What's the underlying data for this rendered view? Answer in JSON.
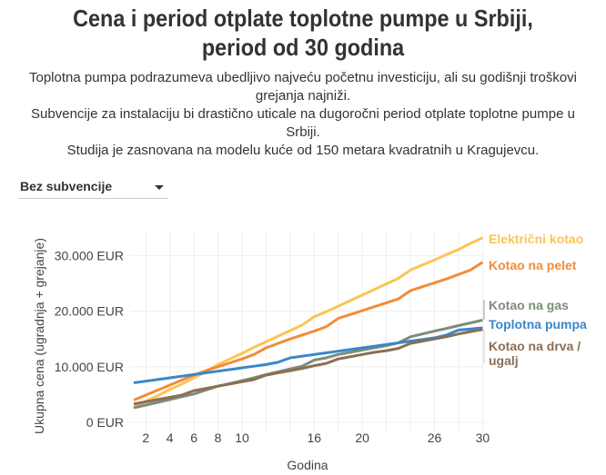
{
  "title": "Cena i period otplate toplotne pumpe u Srbiji, period od 30 godina",
  "subtitle": [
    "Toplotna pumpa podrazumeva ubedljivo najveću početnu investiciju, ali su godišnji troškovi grejanja najniži.",
    "Subvencije za instalaciju bi drastično uticale na dugoročni period otplate toplotne pumpe u Srbiji.",
    "Studija je zasnovana na modelu kuće od 150 metara kvadratnih u Kragujevcu."
  ],
  "dropdown": {
    "selected": "Bez subvencije"
  },
  "chart_data": {
    "type": "line",
    "xlabel": "Godina",
    "ylabel": "Ukupna cena (ugradnja + grejanje)",
    "xlim": [
      1,
      30
    ],
    "ylim": [
      0,
      35000
    ],
    "xticks": [
      2,
      4,
      6,
      8,
      10,
      16,
      20,
      26,
      30
    ],
    "yticks": [
      0,
      10000,
      20000,
      30000
    ],
    "ytick_labels": [
      "0 EUR",
      "10.000 EUR",
      "20.000 EUR",
      "30.000 EUR"
    ],
    "grid": true,
    "x": [
      1,
      2,
      3,
      4,
      5,
      6,
      7,
      8,
      9,
      10,
      11,
      12,
      13,
      14,
      15,
      16,
      17,
      18,
      19,
      20,
      21,
      22,
      23,
      24,
      25,
      26,
      27,
      28,
      29,
      30
    ],
    "series": [
      {
        "name": "Električni kotao",
        "color": "#fcc453",
        "values": [
          2700,
          3800,
          4800,
          5900,
          6900,
          8000,
          9100,
          10400,
          11400,
          12400,
          13500,
          14500,
          15500,
          16500,
          17500,
          19000,
          19900,
          20900,
          21900,
          22900,
          23900,
          24900,
          25900,
          27400,
          28300,
          29200,
          30200,
          31100,
          32200,
          33200
        ]
      },
      {
        "name": "Kotao na pelet",
        "color": "#f28c38",
        "values": [
          4000,
          4900,
          5800,
          6700,
          7600,
          8500,
          9300,
          10000,
          10700,
          11400,
          12200,
          13400,
          14200,
          15000,
          15700,
          16400,
          17200,
          18700,
          19400,
          20100,
          20800,
          21500,
          22200,
          23700,
          24400,
          25100,
          25800,
          26600,
          27400,
          28800
        ]
      },
      {
        "name": "Kotao na gas",
        "color": "#7d8c7a",
        "values": [
          2600,
          3100,
          3600,
          4100,
          4600,
          5100,
          5800,
          6500,
          7000,
          7500,
          8000,
          8600,
          9100,
          9600,
          10100,
          11200,
          11600,
          12200,
          12600,
          13000,
          13400,
          13800,
          14300,
          15400,
          15900,
          16400,
          16900,
          17400,
          17900,
          18400
        ]
      },
      {
        "name": "Toplotna pumpa",
        "color": "#3a87c8",
        "values": [
          7100,
          7400,
          7700,
          8000,
          8300,
          8600,
          8900,
          9200,
          9500,
          9800,
          10100,
          10400,
          10800,
          11600,
          11900,
          12200,
          12500,
          12800,
          13100,
          13400,
          13700,
          14000,
          14300,
          14600,
          14900,
          15200,
          15700,
          16600,
          16800,
          17000
        ]
      },
      {
        "name": "Kotao na drva / ugalj",
        "color": "#8c6e52",
        "values": [
          3300,
          3700,
          4100,
          4500,
          4900,
          5700,
          6100,
          6500,
          6900,
          7300,
          7700,
          8500,
          8900,
          9300,
          9700,
          10200,
          10600,
          11400,
          11800,
          12200,
          12600,
          12900,
          13300,
          14200,
          14600,
          15000,
          15400,
          15900,
          16300,
          16700
        ]
      }
    ]
  }
}
